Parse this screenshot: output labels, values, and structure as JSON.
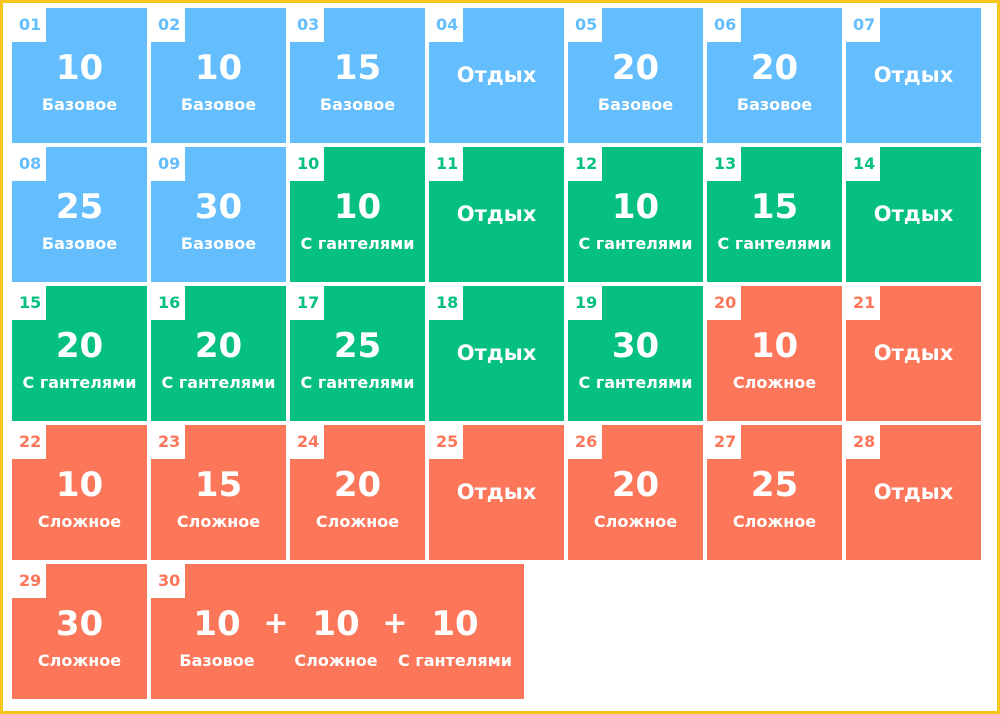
{
  "colors": {
    "basic": "#64bdfc",
    "dumbbells": "#05c082",
    "hard": "#fc765a",
    "border": "#f5c518"
  },
  "days": [
    {
      "day": "01",
      "reps": "10",
      "kind": "Базовое",
      "type": "blue"
    },
    {
      "day": "02",
      "reps": "10",
      "kind": "Базовое",
      "type": "blue"
    },
    {
      "day": "03",
      "reps": "15",
      "kind": "Базовое",
      "type": "blue"
    },
    {
      "day": "04",
      "rest": "Отдых",
      "type": "blue"
    },
    {
      "day": "05",
      "reps": "20",
      "kind": "Базовое",
      "type": "blue"
    },
    {
      "day": "06",
      "reps": "20",
      "kind": "Базовое",
      "type": "blue"
    },
    {
      "day": "07",
      "rest": "Отдых",
      "type": "blue"
    },
    {
      "day": "08",
      "reps": "25",
      "kind": "Базовое",
      "type": "blue"
    },
    {
      "day": "09",
      "reps": "30",
      "kind": "Базовое",
      "type": "blue"
    },
    {
      "day": "10",
      "reps": "10",
      "kind": "С гантелями",
      "type": "green"
    },
    {
      "day": "11",
      "rest": "Отдых",
      "type": "green"
    },
    {
      "day": "12",
      "reps": "10",
      "kind": "С гантелями",
      "type": "green"
    },
    {
      "day": "13",
      "reps": "15",
      "kind": "С гантелями",
      "type": "green"
    },
    {
      "day": "14",
      "rest": "Отдых",
      "type": "green"
    },
    {
      "day": "15",
      "reps": "20",
      "kind": "С гантелями",
      "type": "green"
    },
    {
      "day": "16",
      "reps": "20",
      "kind": "С гантелями",
      "type": "green"
    },
    {
      "day": "17",
      "reps": "25",
      "kind": "С гантелями",
      "type": "green"
    },
    {
      "day": "18",
      "rest": "Отдых",
      "type": "green"
    },
    {
      "day": "19",
      "reps": "30",
      "kind": "С гантелями",
      "type": "green"
    },
    {
      "day": "20",
      "reps": "10",
      "kind": "Сложное",
      "type": "red"
    },
    {
      "day": "21",
      "rest": "Отдых",
      "type": "red"
    },
    {
      "day": "22",
      "reps": "10",
      "kind": "Сложное",
      "type": "red"
    },
    {
      "day": "23",
      "reps": "15",
      "kind": "Сложное",
      "type": "red"
    },
    {
      "day": "24",
      "reps": "20",
      "kind": "Сложное",
      "type": "red"
    },
    {
      "day": "25",
      "rest": "Отдых",
      "type": "red"
    },
    {
      "day": "26",
      "reps": "20",
      "kind": "Сложное",
      "type": "red"
    },
    {
      "day": "27",
      "reps": "25",
      "kind": "Сложное",
      "type": "red"
    },
    {
      "day": "28",
      "rest": "Отдых",
      "type": "red"
    },
    {
      "day": "29",
      "reps": "30",
      "kind": "Сложное",
      "type": "red"
    }
  ],
  "final_day": {
    "day": "30",
    "parts": [
      {
        "reps": "10",
        "kind": "Базовое"
      },
      {
        "reps": "10",
        "kind": "Сложное"
      },
      {
        "reps": "10",
        "kind": "С гантелями"
      }
    ],
    "plus": "+"
  }
}
